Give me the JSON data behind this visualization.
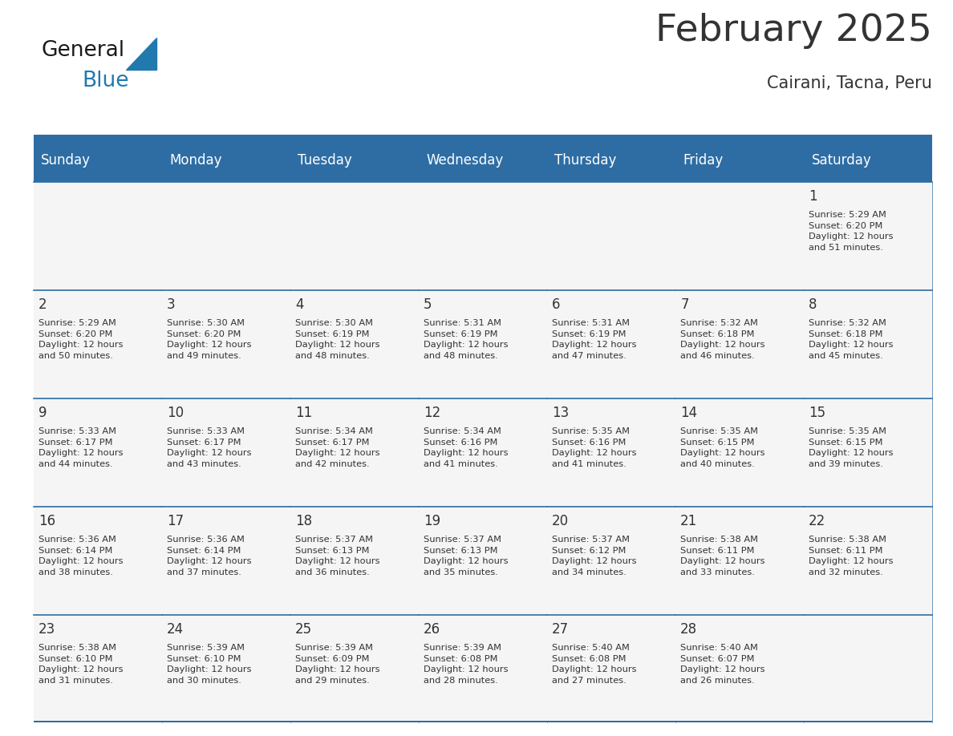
{
  "title": "February 2025",
  "subtitle": "Cairani, Tacna, Peru",
  "header_bg": "#2E6DA4",
  "header_text": "#FFFFFF",
  "cell_bg": "#F5F5F5",
  "border_color": "#2E6DA4",
  "text_color": "#333333",
  "days_of_week": [
    "Sunday",
    "Monday",
    "Tuesday",
    "Wednesday",
    "Thursday",
    "Friday",
    "Saturday"
  ],
  "calendar": [
    [
      {
        "day": null,
        "info": null
      },
      {
        "day": null,
        "info": null
      },
      {
        "day": null,
        "info": null
      },
      {
        "day": null,
        "info": null
      },
      {
        "day": null,
        "info": null
      },
      {
        "day": null,
        "info": null
      },
      {
        "day": "1",
        "info": "Sunrise: 5:29 AM\nSunset: 6:20 PM\nDaylight: 12 hours\nand 51 minutes."
      }
    ],
    [
      {
        "day": "2",
        "info": "Sunrise: 5:29 AM\nSunset: 6:20 PM\nDaylight: 12 hours\nand 50 minutes."
      },
      {
        "day": "3",
        "info": "Sunrise: 5:30 AM\nSunset: 6:20 PM\nDaylight: 12 hours\nand 49 minutes."
      },
      {
        "day": "4",
        "info": "Sunrise: 5:30 AM\nSunset: 6:19 PM\nDaylight: 12 hours\nand 48 minutes."
      },
      {
        "day": "5",
        "info": "Sunrise: 5:31 AM\nSunset: 6:19 PM\nDaylight: 12 hours\nand 48 minutes."
      },
      {
        "day": "6",
        "info": "Sunrise: 5:31 AM\nSunset: 6:19 PM\nDaylight: 12 hours\nand 47 minutes."
      },
      {
        "day": "7",
        "info": "Sunrise: 5:32 AM\nSunset: 6:18 PM\nDaylight: 12 hours\nand 46 minutes."
      },
      {
        "day": "8",
        "info": "Sunrise: 5:32 AM\nSunset: 6:18 PM\nDaylight: 12 hours\nand 45 minutes."
      }
    ],
    [
      {
        "day": "9",
        "info": "Sunrise: 5:33 AM\nSunset: 6:17 PM\nDaylight: 12 hours\nand 44 minutes."
      },
      {
        "day": "10",
        "info": "Sunrise: 5:33 AM\nSunset: 6:17 PM\nDaylight: 12 hours\nand 43 minutes."
      },
      {
        "day": "11",
        "info": "Sunrise: 5:34 AM\nSunset: 6:17 PM\nDaylight: 12 hours\nand 42 minutes."
      },
      {
        "day": "12",
        "info": "Sunrise: 5:34 AM\nSunset: 6:16 PM\nDaylight: 12 hours\nand 41 minutes."
      },
      {
        "day": "13",
        "info": "Sunrise: 5:35 AM\nSunset: 6:16 PM\nDaylight: 12 hours\nand 41 minutes."
      },
      {
        "day": "14",
        "info": "Sunrise: 5:35 AM\nSunset: 6:15 PM\nDaylight: 12 hours\nand 40 minutes."
      },
      {
        "day": "15",
        "info": "Sunrise: 5:35 AM\nSunset: 6:15 PM\nDaylight: 12 hours\nand 39 minutes."
      }
    ],
    [
      {
        "day": "16",
        "info": "Sunrise: 5:36 AM\nSunset: 6:14 PM\nDaylight: 12 hours\nand 38 minutes."
      },
      {
        "day": "17",
        "info": "Sunrise: 5:36 AM\nSunset: 6:14 PM\nDaylight: 12 hours\nand 37 minutes."
      },
      {
        "day": "18",
        "info": "Sunrise: 5:37 AM\nSunset: 6:13 PM\nDaylight: 12 hours\nand 36 minutes."
      },
      {
        "day": "19",
        "info": "Sunrise: 5:37 AM\nSunset: 6:13 PM\nDaylight: 12 hours\nand 35 minutes."
      },
      {
        "day": "20",
        "info": "Sunrise: 5:37 AM\nSunset: 6:12 PM\nDaylight: 12 hours\nand 34 minutes."
      },
      {
        "day": "21",
        "info": "Sunrise: 5:38 AM\nSunset: 6:11 PM\nDaylight: 12 hours\nand 33 minutes."
      },
      {
        "day": "22",
        "info": "Sunrise: 5:38 AM\nSunset: 6:11 PM\nDaylight: 12 hours\nand 32 minutes."
      }
    ],
    [
      {
        "day": "23",
        "info": "Sunrise: 5:38 AM\nSunset: 6:10 PM\nDaylight: 12 hours\nand 31 minutes."
      },
      {
        "day": "24",
        "info": "Sunrise: 5:39 AM\nSunset: 6:10 PM\nDaylight: 12 hours\nand 30 minutes."
      },
      {
        "day": "25",
        "info": "Sunrise: 5:39 AM\nSunset: 6:09 PM\nDaylight: 12 hours\nand 29 minutes."
      },
      {
        "day": "26",
        "info": "Sunrise: 5:39 AM\nSunset: 6:08 PM\nDaylight: 12 hours\nand 28 minutes."
      },
      {
        "day": "27",
        "info": "Sunrise: 5:40 AM\nSunset: 6:08 PM\nDaylight: 12 hours\nand 27 minutes."
      },
      {
        "day": "28",
        "info": "Sunrise: 5:40 AM\nSunset: 6:07 PM\nDaylight: 12 hours\nand 26 minutes."
      },
      {
        "day": null,
        "info": null
      }
    ]
  ],
  "logo_color_general": "#1a1a1a",
  "logo_color_blue": "#2179AE",
  "logo_triangle_color": "#2179AE",
  "title_fontsize": 34,
  "subtitle_fontsize": 15,
  "header_fontsize": 12,
  "day_num_fontsize": 12,
  "cell_text_fontsize": 8.2,
  "fig_width": 11.88,
  "fig_height": 9.18,
  "dpi": 100
}
